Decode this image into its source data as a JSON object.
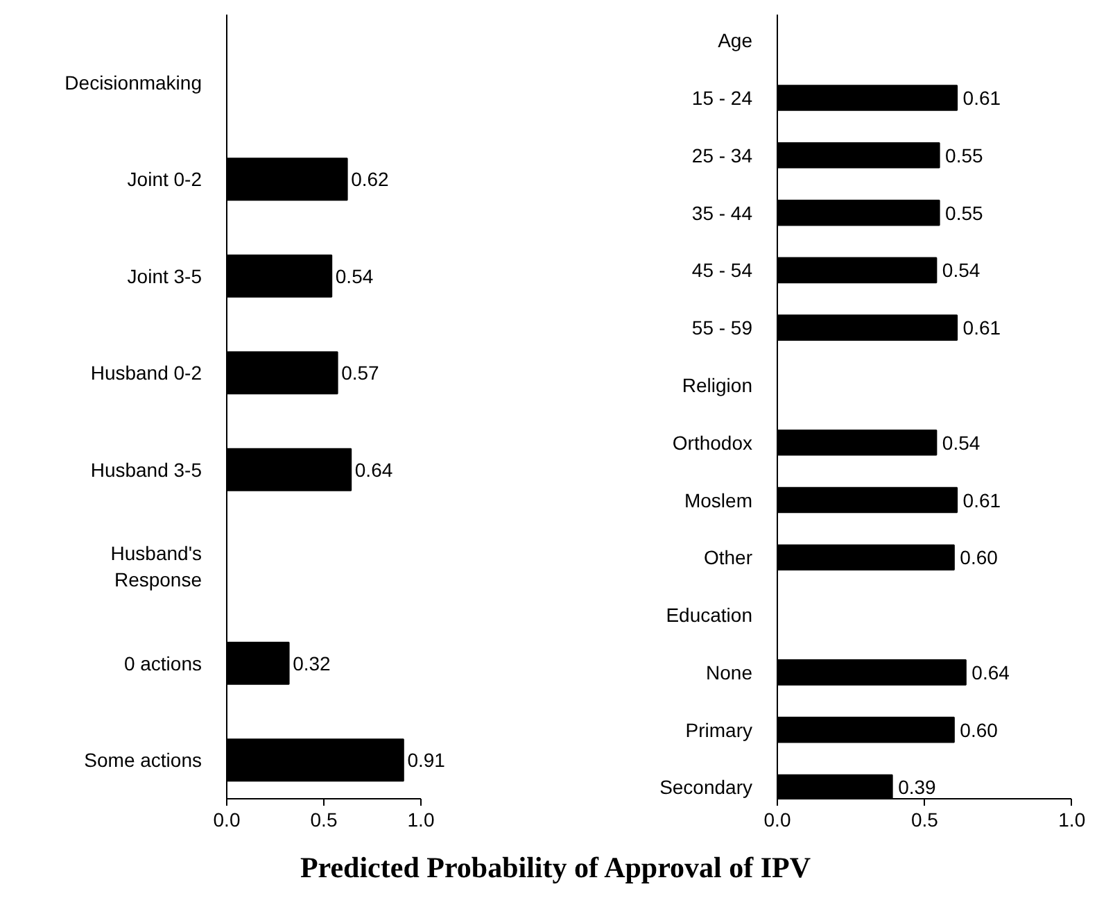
{
  "chart_data": [
    {
      "type": "bar",
      "orientation": "horizontal",
      "categories": [
        "Decisionmaking",
        "Joint 0-2",
        "Joint 3-5",
        "Husband 0-2",
        "Husband 3-5",
        "Husband's Response",
        "0 actions",
        "Some actions"
      ],
      "values": [
        null,
        0.62,
        0.54,
        0.57,
        0.64,
        null,
        0.32,
        0.91
      ],
      "value_labels": [
        null,
        "0.62",
        "0.54",
        "0.57",
        "0.64",
        null,
        "0.32",
        "0.91"
      ],
      "color": "#000000",
      "xlim": [
        0,
        1
      ],
      "xticks": [
        {
          "value": 0,
          "label": "0.0"
        },
        {
          "value": 0.5,
          "label": "0.5"
        },
        {
          "value": 1,
          "label": "1.0"
        }
      ],
      "grid": false,
      "xlabel": "Predicted Probability of Approval of IPV"
    },
    {
      "type": "bar",
      "orientation": "horizontal",
      "categories": [
        "Age",
        "15 - 24",
        "25 - 34",
        "35 - 44",
        "45 - 54",
        "55 - 59",
        "Religion",
        "Orthodox",
        "Moslem",
        "Other",
        "Education",
        "None",
        "Primary",
        "Secondary"
      ],
      "values": [
        null,
        0.61,
        0.55,
        0.55,
        0.54,
        0.61,
        null,
        0.54,
        0.61,
        0.6,
        null,
        0.64,
        0.6,
        0.39
      ],
      "value_labels": [
        null,
        "0.61",
        "0.55",
        "0.55",
        "0.54",
        "0.61",
        null,
        "0.54",
        "0.61",
        "0.60",
        null,
        "0.64",
        "0.60",
        "0.39"
      ],
      "color": "#000000",
      "xlim": [
        0,
        1
      ],
      "xticks": [
        {
          "value": 0,
          "label": "0.0"
        },
        {
          "value": 0.5,
          "label": "0.5"
        },
        {
          "value": 1,
          "label": "1.0"
        }
      ],
      "grid": false
    }
  ]
}
